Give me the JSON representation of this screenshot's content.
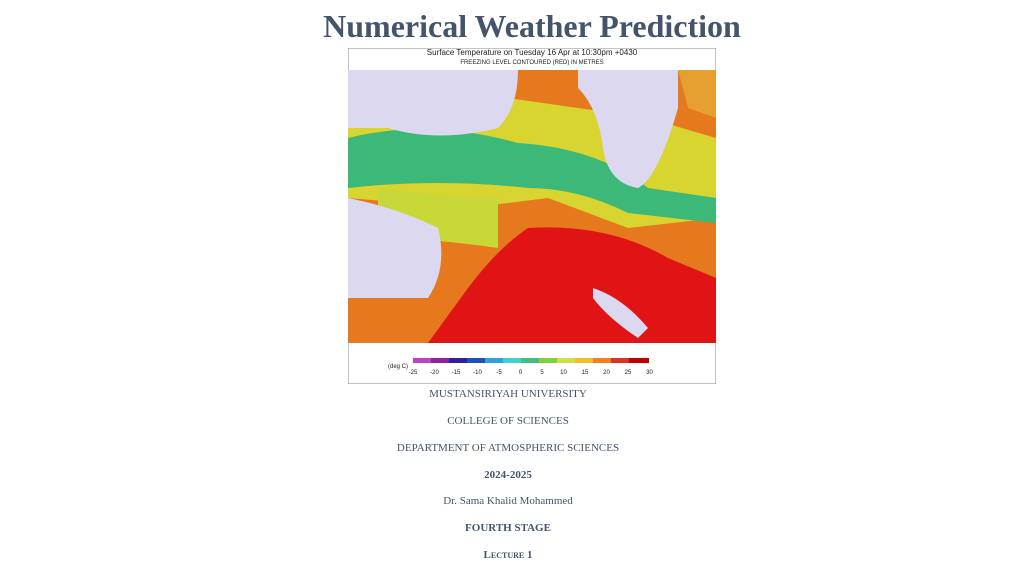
{
  "header": {
    "title": "Numerical Weather Prediction"
  },
  "figure": {
    "title": "Surface Temperature on Tuesday 16 Apr at 10:30pm +0430",
    "subtitle": "FREEZING LEVEL CONTOURED (RED) IN METRES",
    "legend_unit": "(deg C)",
    "legend_ticks": [
      -25,
      -20,
      -15,
      -10,
      -5,
      0,
      5,
      10,
      15,
      20,
      25,
      30
    ]
  },
  "lines": [
    "MUSTANSIRIYAH UNIVERSITY",
    "COLLEGE OF SCIENCES",
    "DEPARTMENT OF ATMOSPHERIC SCIENCES",
    "2024-2025",
    "Dr. Sama Khalid Mohammed",
    "FOURTH STAGE",
    "Lecture 1"
  ]
}
